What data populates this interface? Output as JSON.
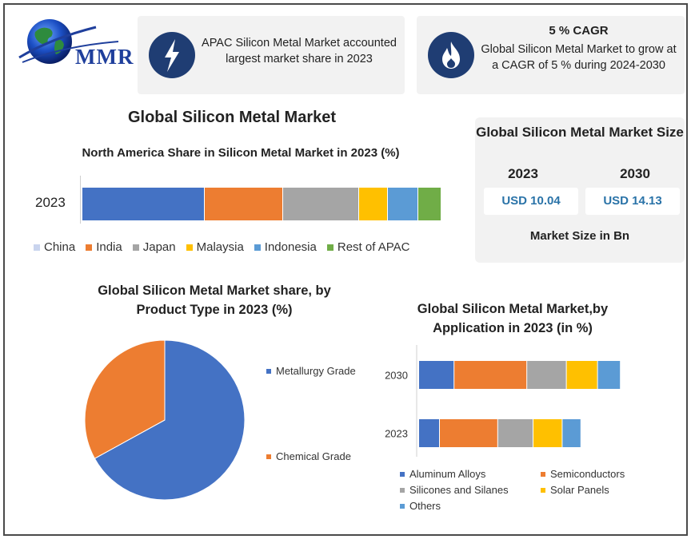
{
  "logo": {
    "text": "MMR",
    "icon": "globe-icon"
  },
  "info_apac": {
    "icon": "lightning-icon",
    "text": "APAC Silicon Metal Market accounted largest market share in 2023"
  },
  "info_cagr": {
    "icon": "fire-icon",
    "title": "5 % CAGR",
    "text": "Global Silicon Metal Market to grow at a CAGR of 5 % during 2024-2030"
  },
  "main_title": "Global Silicon Metal Market",
  "market_size": {
    "title": "Global Silicon Metal Market Size",
    "years": [
      "2023",
      "2030"
    ],
    "values": [
      "USD 10.04",
      "USD 14.13"
    ],
    "unit": "Market Size in Bn"
  },
  "colors": {
    "blue": "#4472c4",
    "orange": "#ed7d31",
    "gray": "#a5a5a5",
    "yellow": "#ffc000",
    "lightblue": "#5b9bd5",
    "green": "#70ad47"
  },
  "chart_data": [
    {
      "type": "bar",
      "orientation": "horizontal-stacked",
      "title": "North America Share in Silicon Metal Market in 2023 (%)",
      "categories": [
        "2023"
      ],
      "series": [
        {
          "name": "China",
          "values": [
            34
          ],
          "color": "#4472c4",
          "legend_color": "#c9d4ee"
        },
        {
          "name": "India",
          "values": [
            22
          ],
          "color": "#ed7d31"
        },
        {
          "name": "Japan",
          "values": [
            21
          ],
          "color": "#a5a5a5"
        },
        {
          "name": "Malaysia",
          "values": [
            8
          ],
          "color": "#ffc000"
        },
        {
          "name": "Indonesia",
          "values": [
            8.5
          ],
          "color": "#5b9bd5"
        },
        {
          "name": "Rest of APAC",
          "values": [
            6.5
          ],
          "color": "#70ad47"
        }
      ],
      "legend_position": "bottom"
    },
    {
      "type": "pie",
      "title": "Global Silicon Metal Market share, by Product Type in 2023  (%)",
      "slices": [
        {
          "name": "Metallurgy Grade",
          "value": 67,
          "color": "#4472c4"
        },
        {
          "name": "Chemical Grade",
          "value": 33,
          "color": "#ed7d31"
        }
      ],
      "legend_position": "right"
    },
    {
      "type": "bar",
      "orientation": "horizontal-stacked",
      "title": "Global Silicon Metal Market,by Application in 2023 (in %)",
      "categories": [
        "2030",
        "2023"
      ],
      "series": [
        {
          "name": "Aluminum Alloys",
          "values": [
            17,
            10
          ],
          "color": "#4472c4"
        },
        {
          "name": "Semiconductors",
          "values": [
            35,
            28
          ],
          "color": "#ed7d31"
        },
        {
          "name": "Silicones and Silanes",
          "values": [
            19,
            17
          ],
          "color": "#a5a5a5"
        },
        {
          "name": "Solar Panels",
          "values": [
            15,
            14
          ],
          "color": "#ffc000"
        },
        {
          "name": "Others",
          "values": [
            11,
            9
          ],
          "color": "#5b9bd5"
        }
      ],
      "legend_position": "bottom"
    }
  ]
}
